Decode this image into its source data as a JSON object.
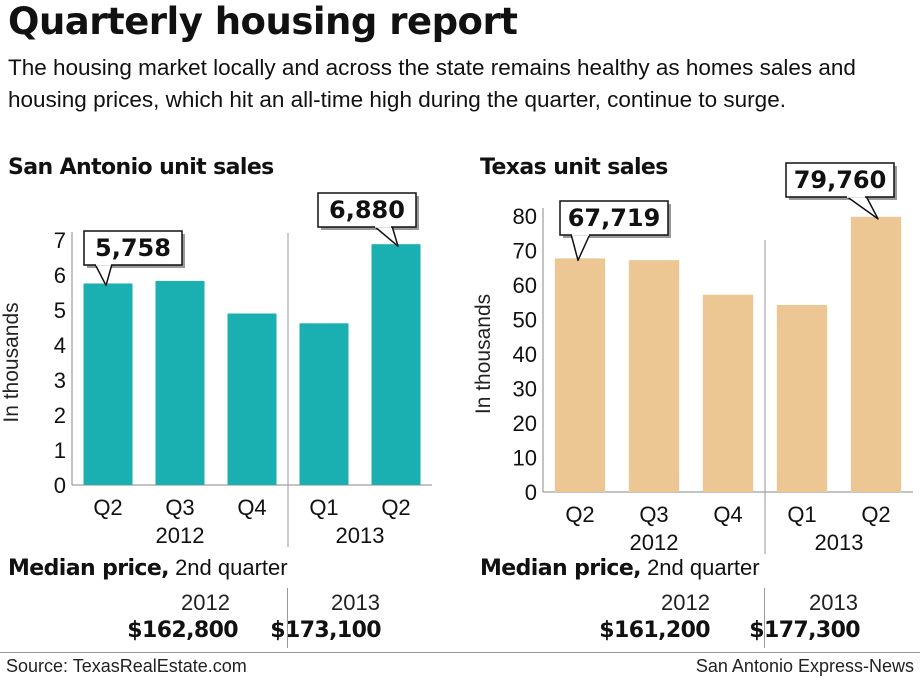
{
  "title": "Quarterly housing report",
  "dek": "The housing market locally and across the state remains healthy as homes sales and housing prices, which hit an all-time high during the quarter, continue to surge.",
  "chart_data": [
    {
      "type": "bar",
      "title": "San Antonio unit sales",
      "ylabel": "In thousands",
      "ylim": [
        0,
        7
      ],
      "yticks": [
        "0",
        "1",
        "2",
        "3",
        "4",
        "5",
        "6",
        "7"
      ],
      "categories": [
        "Q2",
        "Q3",
        "Q4",
        "Q1",
        "Q2"
      ],
      "year_groups": [
        {
          "label": "2012",
          "span": 3
        },
        {
          "label": "2013",
          "span": 2
        }
      ],
      "values": [
        5.758,
        5.83,
        4.9,
        4.62,
        6.88
      ],
      "callouts": [
        {
          "index": 0,
          "text": "5,758"
        },
        {
          "index": 4,
          "text": "6,880"
        }
      ],
      "color": "#1aafb0",
      "grid": false,
      "median_price": {
        "heading_bold": "Median price,",
        "heading_rest": "2nd quarter",
        "years": [
          "2012",
          "2013"
        ],
        "prices": [
          "$162,800",
          "$173,100"
        ]
      }
    },
    {
      "type": "bar",
      "title": "Texas unit sales",
      "ylabel": "In thousands",
      "ylim": [
        0,
        80
      ],
      "yticks": [
        "0",
        "10",
        "20",
        "30",
        "40",
        "50",
        "60",
        "70",
        "80"
      ],
      "categories": [
        "Q2",
        "Q3",
        "Q4",
        "Q1",
        "Q2"
      ],
      "year_groups": [
        {
          "label": "2012",
          "span": 3
        },
        {
          "label": "2013",
          "span": 2
        }
      ],
      "values": [
        67.719,
        67.2,
        57.2,
        54.2,
        79.76
      ],
      "callouts": [
        {
          "index": 0,
          "text": "67,719"
        },
        {
          "index": 4,
          "text": "79,760"
        }
      ],
      "color": "#ecc693",
      "grid": false,
      "median_price": {
        "heading_bold": "Median price,",
        "heading_rest": "2nd quarter",
        "years": [
          "2012",
          "2013"
        ],
        "prices": [
          "$161,200",
          "$177,300"
        ]
      }
    }
  ],
  "footer": {
    "source": "Source: TexasRealEstate.com",
    "credit": "San Antonio Express-News"
  }
}
